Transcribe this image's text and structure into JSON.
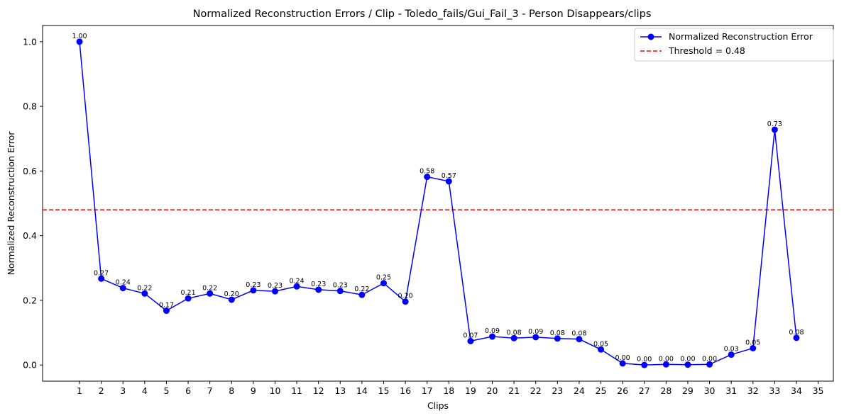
{
  "chart_data": {
    "type": "line",
    "title": "Normalized Reconstruction Errors / Clip - Toledo_fails/Gui_Fail_3 - Person Disappears/clips",
    "xlabel": "Clips",
    "ylabel": "Normalized Reconstruction Error",
    "xlim": [
      -0.7,
      35.7
    ],
    "ylim": [
      -0.05,
      1.05
    ],
    "x_ticks": [
      1,
      2,
      3,
      4,
      5,
      6,
      7,
      8,
      9,
      10,
      11,
      12,
      13,
      14,
      15,
      16,
      17,
      18,
      19,
      20,
      21,
      22,
      23,
      24,
      25,
      26,
      27,
      28,
      29,
      30,
      31,
      32,
      33,
      34,
      35
    ],
    "y_ticks": [
      0.0,
      0.2,
      0.4,
      0.6,
      0.8,
      1.0
    ],
    "y_tick_labels": [
      "0.0",
      "0.2",
      "0.4",
      "0.6",
      "0.8",
      "1.0"
    ],
    "grid": false,
    "legend_position": "top-right",
    "series": [
      {
        "name": "Normalized Reconstruction Error",
        "color": "#0000ff",
        "marker": "circle",
        "x": [
          1,
          2,
          3,
          4,
          5,
          6,
          7,
          8,
          9,
          10,
          11,
          12,
          13,
          14,
          15,
          16,
          17,
          18,
          19,
          20,
          21,
          22,
          23,
          24,
          25,
          26,
          27,
          28,
          29,
          30,
          31,
          32,
          33,
          34
        ],
        "values": [
          1.0,
          0.267,
          0.238,
          0.221,
          0.168,
          0.206,
          0.221,
          0.202,
          0.231,
          0.228,
          0.243,
          0.233,
          0.229,
          0.217,
          0.253,
          0.196,
          0.582,
          0.568,
          0.074,
          0.088,
          0.083,
          0.086,
          0.082,
          0.08,
          0.048,
          0.005,
          0.0,
          0.002,
          0.001,
          0.002,
          0.032,
          0.052,
          0.728,
          0.084
        ],
        "labels": [
          "1.00",
          "0.27",
          "0.24",
          "0.22",
          "0.17",
          "0.21",
          "0.22",
          "0.20",
          "0.23",
          "0.23",
          "0.24",
          "0.23",
          "0.23",
          "0.22",
          "0.25",
          "0.20",
          "0.58",
          "0.57",
          "0.07",
          "0.09",
          "0.08",
          "0.09",
          "0.08",
          "0.08",
          "0.05",
          "0.00",
          "0.00",
          "0.00",
          "0.00",
          "0.00",
          "0.03",
          "0.05",
          "0.73",
          "0.08"
        ]
      }
    ],
    "threshold": {
      "name": "Threshold = 0.48",
      "value": 0.48,
      "color": "#ff0000",
      "style": "dashed"
    }
  }
}
